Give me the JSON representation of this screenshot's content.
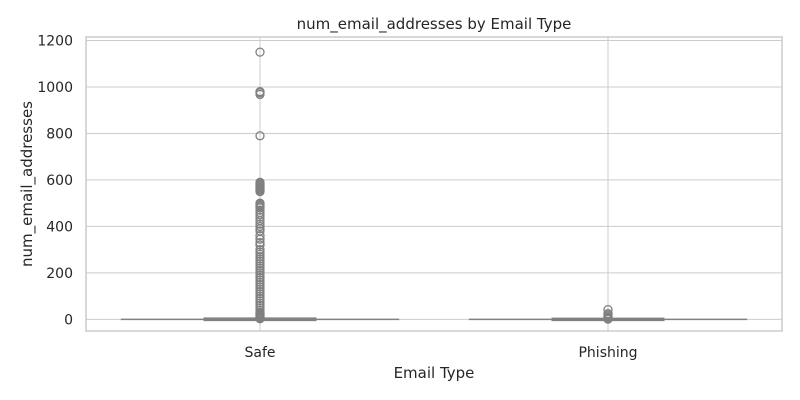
{
  "chart_data": {
    "type": "box",
    "title": "num_email_addresses by Email Type",
    "xlabel": "Email Type",
    "ylabel": "num_email_addresses",
    "ylim": [
      -50,
      1215
    ],
    "yticks": [
      0,
      200,
      400,
      600,
      800,
      1000,
      1200
    ],
    "grid": true,
    "colors": {
      "box": "#ffffff",
      "line": "#808080",
      "grid": "#cccccc",
      "frame": "#cccccc"
    },
    "categories": [
      "Safe",
      "Phishing"
    ],
    "boxes": [
      {
        "category": "Safe",
        "q1": 0,
        "median": 0,
        "q3": 1,
        "whisker_low": 0,
        "whisker_high": 2,
        "outliers": [
          1150,
          980,
          975,
          968,
          790,
          590,
          585,
          580,
          575,
          570,
          565,
          560,
          555,
          550,
          500,
          495,
          490,
          485,
          480,
          470,
          460,
          450,
          440,
          425,
          410,
          400,
          390,
          380,
          360,
          345,
          330,
          320,
          300,
          290,
          280,
          270,
          260,
          250,
          240,
          230,
          220,
          210,
          200,
          190,
          180,
          170,
          160,
          150,
          140,
          130,
          120,
          110,
          100,
          90,
          80,
          70,
          60,
          50,
          40,
          30,
          25,
          20,
          15,
          10,
          8,
          6,
          4,
          3
        ]
      },
      {
        "category": "Phishing",
        "q1": 0,
        "median": 0,
        "q3": 0,
        "whisker_low": 0,
        "whisker_high": 0,
        "outliers": [
          42,
          25,
          18,
          12,
          8,
          5,
          3,
          2,
          1
        ]
      }
    ]
  }
}
